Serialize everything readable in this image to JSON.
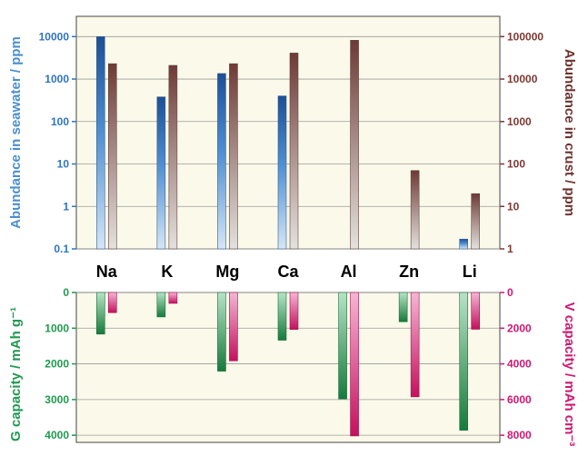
{
  "chart_data": [
    {
      "type": "bar",
      "categories": [
        "Na",
        "K",
        "Mg",
        "Ca",
        "Al",
        "Zn",
        "Li"
      ],
      "yscale": "log",
      "series": [
        {
          "values": [
            10000,
            380,
            1350,
            400,
            null,
            null,
            0.17
          ],
          "axis": "left"
        },
        {
          "values": [
            23000,
            21000,
            23000,
            41000,
            82000,
            70,
            20
          ],
          "axis": "right"
        }
      ],
      "ylabel_left": "Abundance in seawater / ppm",
      "ylabel_right": "Abundance in crust / ppm",
      "ylim_left": [
        0.1,
        30000
      ],
      "ylim_right": [
        1,
        300000
      ],
      "yticks_left": [
        "0.1",
        "1",
        "10",
        "100",
        "1000",
        "10000"
      ],
      "yticks_right": [
        "1",
        "10",
        "100",
        "1000",
        "10000",
        "100000"
      ],
      "grid": true,
      "colors": {
        "left": "#2f74c0",
        "right": "#7a3a34"
      }
    },
    {
      "type": "bar",
      "categories": [
        "Na",
        "K",
        "Mg",
        "Ca",
        "Al",
        "Zn",
        "Li"
      ],
      "inverted": true,
      "series": [
        {
          "values": [
            1166,
            685,
            2205,
            1337,
            2980,
            820,
            3860
          ],
          "axis": "left"
        },
        {
          "values": [
            1130,
            610,
            3830,
            2070,
            8040,
            5850,
            2060
          ],
          "axis": "right"
        }
      ],
      "ylabel_left": "G capacity / mAh g⁻¹",
      "ylabel_right": "V capacity / mAh cm⁻³",
      "ylim_left": [
        0,
        4200
      ],
      "ylim_right": [
        0,
        8400
      ],
      "yticks_left": [
        "0",
        "1000",
        "2000",
        "3000",
        "4000"
      ],
      "yticks_right": [
        "0",
        "2000",
        "4000",
        "6000",
        "8000"
      ],
      "grid": true,
      "colors": {
        "left": "#1e9a4e",
        "right": "#d01872"
      }
    }
  ]
}
